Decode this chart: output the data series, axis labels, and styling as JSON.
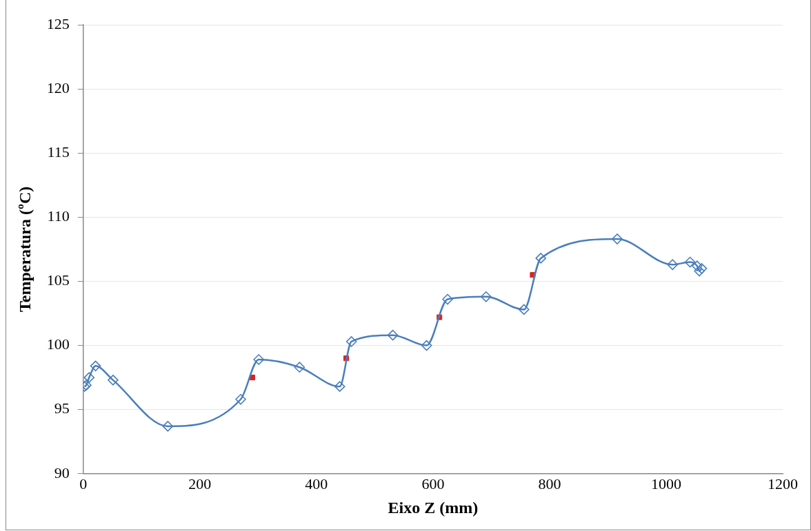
{
  "chart_data": {
    "type": "line",
    "xlabel": "Eixo Z (mm)",
    "ylabel": "Temperatura (ºC)",
    "xlim": [
      0,
      1200
    ],
    "xticks": [
      0,
      200,
      400,
      600,
      800,
      1000,
      1200
    ],
    "ylim": [
      90,
      125
    ],
    "yticks": [
      90,
      95,
      100,
      105,
      110,
      115,
      120,
      125
    ],
    "grid": "y",
    "legend": false,
    "marker": "diamond",
    "series": [
      {
        "color": "#4a7ebb",
        "x": [
          2,
          5,
          10,
          21,
          51,
          145,
          270,
          301,
          371,
          440,
          460,
          531,
          589,
          625,
          691,
          756,
          785,
          916,
          1011,
          1041,
          1053,
          1057,
          1061
        ],
        "values": [
          96.8,
          96.9,
          97.5,
          98.4,
          97.3,
          93.7,
          95.8,
          98.9,
          98.3,
          96.8,
          100.3,
          100.8,
          100.0,
          103.6,
          103.8,
          102.8,
          106.8,
          108.3,
          106.3,
          106.5,
          106.2,
          105.8,
          106.0
        ]
      },
      {
        "type": "scatter",
        "color": "#e0201b",
        "marker": "square",
        "x": [
          290,
          451,
          611,
          771
        ],
        "values": [
          97.5,
          99.0,
          102.2,
          105.5
        ]
      }
    ]
  }
}
